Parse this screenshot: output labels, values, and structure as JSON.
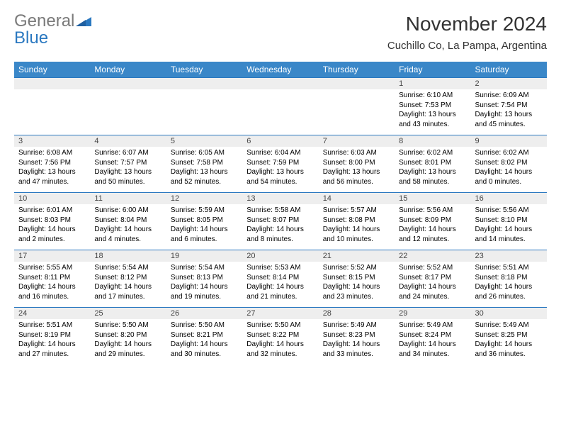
{
  "brand": {
    "name_gray": "General",
    "name_blue": "Blue"
  },
  "title": "November 2024",
  "location": "Cuchillo Co, La Pampa, Argentina",
  "colors": {
    "header_bg": "#3a87c8",
    "header_text": "#ffffff",
    "daynum_bg": "#eeeeee",
    "divider": "#2a78c0",
    "logo_gray": "#7a7a7a",
    "logo_blue": "#2a78c0"
  },
  "weekdays": [
    "Sunday",
    "Monday",
    "Tuesday",
    "Wednesday",
    "Thursday",
    "Friday",
    "Saturday"
  ],
  "weeks": [
    [
      null,
      null,
      null,
      null,
      null,
      {
        "n": "1",
        "sunrise": "Sunrise: 6:10 AM",
        "sunset": "Sunset: 7:53 PM",
        "daylight": "Daylight: 13 hours and 43 minutes."
      },
      {
        "n": "2",
        "sunrise": "Sunrise: 6:09 AM",
        "sunset": "Sunset: 7:54 PM",
        "daylight": "Daylight: 13 hours and 45 minutes."
      }
    ],
    [
      {
        "n": "3",
        "sunrise": "Sunrise: 6:08 AM",
        "sunset": "Sunset: 7:56 PM",
        "daylight": "Daylight: 13 hours and 47 minutes."
      },
      {
        "n": "4",
        "sunrise": "Sunrise: 6:07 AM",
        "sunset": "Sunset: 7:57 PM",
        "daylight": "Daylight: 13 hours and 50 minutes."
      },
      {
        "n": "5",
        "sunrise": "Sunrise: 6:05 AM",
        "sunset": "Sunset: 7:58 PM",
        "daylight": "Daylight: 13 hours and 52 minutes."
      },
      {
        "n": "6",
        "sunrise": "Sunrise: 6:04 AM",
        "sunset": "Sunset: 7:59 PM",
        "daylight": "Daylight: 13 hours and 54 minutes."
      },
      {
        "n": "7",
        "sunrise": "Sunrise: 6:03 AM",
        "sunset": "Sunset: 8:00 PM",
        "daylight": "Daylight: 13 hours and 56 minutes."
      },
      {
        "n": "8",
        "sunrise": "Sunrise: 6:02 AM",
        "sunset": "Sunset: 8:01 PM",
        "daylight": "Daylight: 13 hours and 58 minutes."
      },
      {
        "n": "9",
        "sunrise": "Sunrise: 6:02 AM",
        "sunset": "Sunset: 8:02 PM",
        "daylight": "Daylight: 14 hours and 0 minutes."
      }
    ],
    [
      {
        "n": "10",
        "sunrise": "Sunrise: 6:01 AM",
        "sunset": "Sunset: 8:03 PM",
        "daylight": "Daylight: 14 hours and 2 minutes."
      },
      {
        "n": "11",
        "sunrise": "Sunrise: 6:00 AM",
        "sunset": "Sunset: 8:04 PM",
        "daylight": "Daylight: 14 hours and 4 minutes."
      },
      {
        "n": "12",
        "sunrise": "Sunrise: 5:59 AM",
        "sunset": "Sunset: 8:05 PM",
        "daylight": "Daylight: 14 hours and 6 minutes."
      },
      {
        "n": "13",
        "sunrise": "Sunrise: 5:58 AM",
        "sunset": "Sunset: 8:07 PM",
        "daylight": "Daylight: 14 hours and 8 minutes."
      },
      {
        "n": "14",
        "sunrise": "Sunrise: 5:57 AM",
        "sunset": "Sunset: 8:08 PM",
        "daylight": "Daylight: 14 hours and 10 minutes."
      },
      {
        "n": "15",
        "sunrise": "Sunrise: 5:56 AM",
        "sunset": "Sunset: 8:09 PM",
        "daylight": "Daylight: 14 hours and 12 minutes."
      },
      {
        "n": "16",
        "sunrise": "Sunrise: 5:56 AM",
        "sunset": "Sunset: 8:10 PM",
        "daylight": "Daylight: 14 hours and 14 minutes."
      }
    ],
    [
      {
        "n": "17",
        "sunrise": "Sunrise: 5:55 AM",
        "sunset": "Sunset: 8:11 PM",
        "daylight": "Daylight: 14 hours and 16 minutes."
      },
      {
        "n": "18",
        "sunrise": "Sunrise: 5:54 AM",
        "sunset": "Sunset: 8:12 PM",
        "daylight": "Daylight: 14 hours and 17 minutes."
      },
      {
        "n": "19",
        "sunrise": "Sunrise: 5:54 AM",
        "sunset": "Sunset: 8:13 PM",
        "daylight": "Daylight: 14 hours and 19 minutes."
      },
      {
        "n": "20",
        "sunrise": "Sunrise: 5:53 AM",
        "sunset": "Sunset: 8:14 PM",
        "daylight": "Daylight: 14 hours and 21 minutes."
      },
      {
        "n": "21",
        "sunrise": "Sunrise: 5:52 AM",
        "sunset": "Sunset: 8:15 PM",
        "daylight": "Daylight: 14 hours and 23 minutes."
      },
      {
        "n": "22",
        "sunrise": "Sunrise: 5:52 AM",
        "sunset": "Sunset: 8:17 PM",
        "daylight": "Daylight: 14 hours and 24 minutes."
      },
      {
        "n": "23",
        "sunrise": "Sunrise: 5:51 AM",
        "sunset": "Sunset: 8:18 PM",
        "daylight": "Daylight: 14 hours and 26 minutes."
      }
    ],
    [
      {
        "n": "24",
        "sunrise": "Sunrise: 5:51 AM",
        "sunset": "Sunset: 8:19 PM",
        "daylight": "Daylight: 14 hours and 27 minutes."
      },
      {
        "n": "25",
        "sunrise": "Sunrise: 5:50 AM",
        "sunset": "Sunset: 8:20 PM",
        "daylight": "Daylight: 14 hours and 29 minutes."
      },
      {
        "n": "26",
        "sunrise": "Sunrise: 5:50 AM",
        "sunset": "Sunset: 8:21 PM",
        "daylight": "Daylight: 14 hours and 30 minutes."
      },
      {
        "n": "27",
        "sunrise": "Sunrise: 5:50 AM",
        "sunset": "Sunset: 8:22 PM",
        "daylight": "Daylight: 14 hours and 32 minutes."
      },
      {
        "n": "28",
        "sunrise": "Sunrise: 5:49 AM",
        "sunset": "Sunset: 8:23 PM",
        "daylight": "Daylight: 14 hours and 33 minutes."
      },
      {
        "n": "29",
        "sunrise": "Sunrise: 5:49 AM",
        "sunset": "Sunset: 8:24 PM",
        "daylight": "Daylight: 14 hours and 34 minutes."
      },
      {
        "n": "30",
        "sunrise": "Sunrise: 5:49 AM",
        "sunset": "Sunset: 8:25 PM",
        "daylight": "Daylight: 14 hours and 36 minutes."
      }
    ]
  ]
}
